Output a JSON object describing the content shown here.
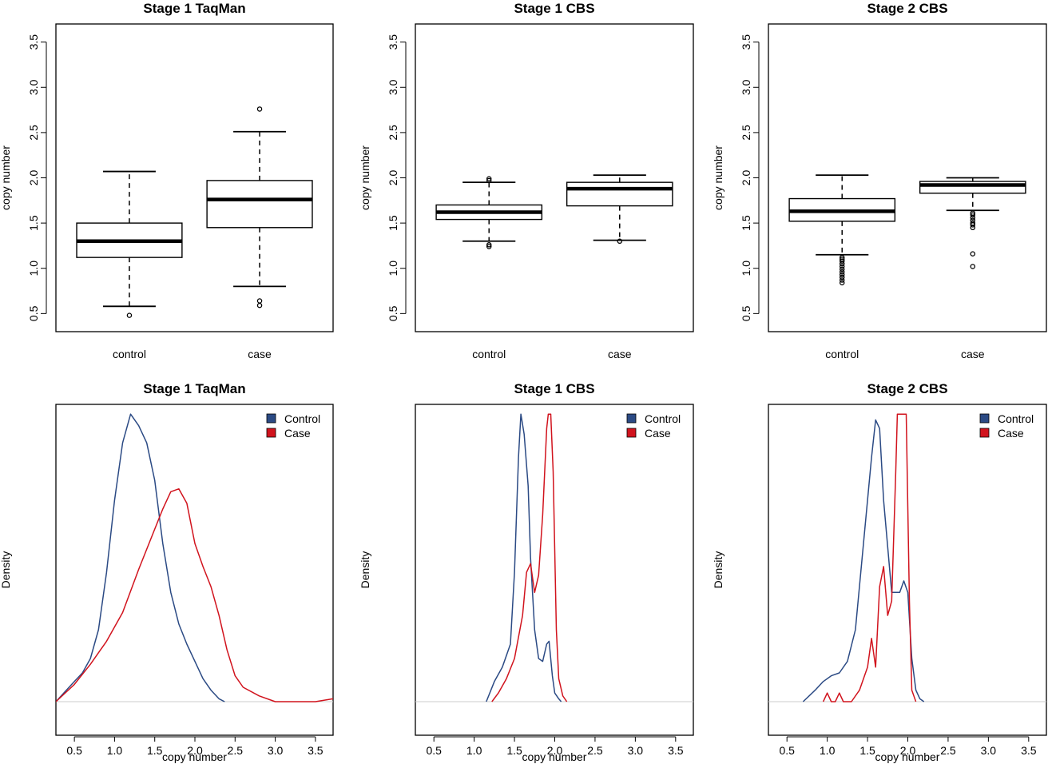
{
  "colors": {
    "control": "#2b4a84",
    "case": "#d1131d",
    "baseline": "#cccccc",
    "frame": "#000000"
  },
  "chart_data": [
    {
      "type": "box",
      "title": "Stage 1 TaqMan",
      "ylabel": "copy number",
      "ylim": [
        0.3,
        3.7
      ],
      "yticks": [
        "0.5",
        "1.0",
        "1.5",
        "2.0",
        "2.5",
        "3.0",
        "3.5"
      ],
      "categories": [
        "control",
        "case"
      ],
      "boxes": [
        {
          "name": "control",
          "whisker_low": 0.58,
          "q1": 1.12,
          "median": 1.3,
          "q3": 1.5,
          "whisker_high": 2.07,
          "outliers": [
            0.48
          ]
        },
        {
          "name": "case",
          "whisker_low": 0.8,
          "q1": 1.45,
          "median": 1.76,
          "q3": 1.97,
          "whisker_high": 2.51,
          "outliers": [
            0.59,
            0.64,
            2.76
          ]
        }
      ]
    },
    {
      "type": "box",
      "title": "Stage 1 CBS",
      "ylabel": "copy number",
      "ylim": [
        0.3,
        3.7
      ],
      "yticks": [
        "0.5",
        "1.0",
        "1.5",
        "2.0",
        "2.5",
        "3.0",
        "3.5"
      ],
      "categories": [
        "control",
        "case"
      ],
      "boxes": [
        {
          "name": "control",
          "whisker_low": 1.3,
          "q1": 1.54,
          "median": 1.62,
          "q3": 1.7,
          "whisker_high": 1.95,
          "outliers": [
            1.24,
            1.26,
            1.97,
            1.99
          ]
        },
        {
          "name": "case",
          "whisker_low": 1.31,
          "q1": 1.69,
          "median": 1.88,
          "q3": 1.95,
          "whisker_high": 2.03,
          "outliers": [
            1.3
          ]
        }
      ]
    },
    {
      "type": "box",
      "title": "Stage 2 CBS",
      "ylabel": "copy number",
      "ylim": [
        0.3,
        3.7
      ],
      "yticks": [
        "0.5",
        "1.0",
        "1.5",
        "2.0",
        "2.5",
        "3.0",
        "3.5"
      ],
      "categories": [
        "control",
        "case"
      ],
      "boxes": [
        {
          "name": "control",
          "whisker_low": 1.15,
          "q1": 1.52,
          "median": 1.63,
          "q3": 1.77,
          "whisker_high": 2.03,
          "outliers": [
            0.84,
            0.87,
            0.9,
            0.93,
            0.96,
            0.99,
            1.02,
            1.05,
            1.08,
            1.1,
            1.12
          ]
        },
        {
          "name": "case",
          "whisker_low": 1.64,
          "q1": 1.83,
          "median": 1.92,
          "q3": 1.96,
          "whisker_high": 2.0,
          "outliers": [
            1.02,
            1.16,
            1.45,
            1.48,
            1.5,
            1.53,
            1.56,
            1.59,
            1.61
          ]
        }
      ]
    },
    {
      "type": "line",
      "title": "Stage 1 TaqMan",
      "xlabel": "copy number",
      "ylabel": "Density",
      "xlim": [
        0.27,
        3.72
      ],
      "xticks": [
        "0.5",
        "1.0",
        "1.5",
        "2.0",
        "2.5",
        "3.0",
        "3.5"
      ],
      "ylim": [
        0,
        1.02
      ],
      "legend": {
        "position": "top-right",
        "labels": [
          "Control",
          "Case"
        ]
      },
      "series": [
        {
          "name": "Control",
          "x": [
            0.27,
            0.4,
            0.5,
            0.6,
            0.7,
            0.8,
            0.9,
            1.0,
            1.1,
            1.2,
            1.3,
            1.4,
            1.5,
            1.6,
            1.7,
            1.8,
            1.9,
            2.0,
            2.1,
            2.2,
            2.3,
            2.37
          ],
          "y": [
            0.0,
            0.04,
            0.07,
            0.1,
            0.15,
            0.25,
            0.45,
            0.7,
            0.9,
            1.0,
            0.96,
            0.9,
            0.77,
            0.55,
            0.38,
            0.27,
            0.2,
            0.14,
            0.08,
            0.04,
            0.01,
            0.0
          ]
        },
        {
          "name": "Case",
          "x": [
            0.27,
            0.5,
            0.7,
            0.9,
            1.1,
            1.3,
            1.5,
            1.6,
            1.7,
            1.8,
            1.9,
            2.0,
            2.1,
            2.2,
            2.3,
            2.4,
            2.5,
            2.6,
            2.8,
            3.0,
            3.2,
            3.5,
            3.72
          ],
          "y": [
            0.0,
            0.06,
            0.13,
            0.21,
            0.31,
            0.46,
            0.6,
            0.67,
            0.73,
            0.74,
            0.69,
            0.55,
            0.47,
            0.4,
            0.3,
            0.18,
            0.09,
            0.05,
            0.02,
            0.0,
            0.0,
            0.0,
            0.01
          ]
        }
      ]
    },
    {
      "type": "line",
      "title": "Stage 1 CBS",
      "xlabel": "copy number",
      "ylabel": "Density",
      "xlim": [
        0.27,
        3.72
      ],
      "xticks": [
        "0.5",
        "1.0",
        "1.5",
        "2.0",
        "2.5",
        "3.0",
        "3.5"
      ],
      "ylim": [
        0,
        1.02
      ],
      "legend": {
        "position": "top-right",
        "labels": [
          "Control",
          "Case"
        ]
      },
      "series": [
        {
          "name": "Control",
          "x": [
            1.15,
            1.25,
            1.35,
            1.45,
            1.5,
            1.55,
            1.58,
            1.62,
            1.67,
            1.7,
            1.75,
            1.8,
            1.85,
            1.9,
            1.93,
            1.97,
            2.0,
            2.05,
            2.08
          ],
          "y": [
            0.0,
            0.07,
            0.12,
            0.2,
            0.45,
            0.85,
            1.0,
            0.93,
            0.75,
            0.5,
            0.25,
            0.15,
            0.14,
            0.2,
            0.21,
            0.09,
            0.03,
            0.01,
            0.0
          ]
        },
        {
          "name": "Case",
          "x": [
            1.22,
            1.3,
            1.4,
            1.5,
            1.6,
            1.65,
            1.7,
            1.75,
            1.8,
            1.85,
            1.9,
            1.92,
            1.95,
            1.98,
            2.02,
            2.05,
            2.1,
            2.15
          ],
          "y": [
            0.0,
            0.03,
            0.08,
            0.15,
            0.3,
            0.45,
            0.48,
            0.38,
            0.44,
            0.65,
            0.95,
            1.0,
            1.0,
            0.8,
            0.25,
            0.08,
            0.02,
            0.0
          ]
        }
      ]
    },
    {
      "type": "line",
      "title": "Stage 2 CBS",
      "xlabel": "copy number",
      "ylabel": "Density",
      "xlim": [
        0.27,
        3.72
      ],
      "xticks": [
        "0.5",
        "1.0",
        "1.5",
        "2.0",
        "2.5",
        "3.0",
        "3.5"
      ],
      "ylim": [
        0,
        1.02
      ],
      "legend": {
        "position": "top-right",
        "labels": [
          "Control",
          "Case"
        ]
      },
      "series": [
        {
          "name": "Control",
          "x": [
            0.7,
            0.85,
            0.95,
            1.05,
            1.15,
            1.25,
            1.35,
            1.45,
            1.55,
            1.6,
            1.65,
            1.7,
            1.8,
            1.9,
            1.95,
            2.0,
            2.05,
            2.1,
            2.15,
            2.2
          ],
          "y": [
            0.0,
            0.04,
            0.07,
            0.09,
            0.1,
            0.14,
            0.25,
            0.55,
            0.85,
            0.98,
            0.95,
            0.7,
            0.38,
            0.38,
            0.42,
            0.38,
            0.15,
            0.04,
            0.01,
            0.0
          ]
        },
        {
          "name": "Case",
          "x": [
            0.95,
            1.0,
            1.05,
            1.1,
            1.15,
            1.2,
            1.3,
            1.4,
            1.5,
            1.55,
            1.6,
            1.65,
            1.7,
            1.75,
            1.8,
            1.85,
            1.87,
            1.9,
            1.95,
            1.98,
            2.02,
            2.05,
            2.1
          ],
          "y": [
            0.0,
            0.03,
            0.0,
            0.0,
            0.03,
            0.0,
            0.0,
            0.04,
            0.12,
            0.22,
            0.12,
            0.4,
            0.47,
            0.3,
            0.35,
            0.8,
            1.0,
            1.0,
            1.0,
            1.0,
            0.35,
            0.04,
            0.0
          ]
        }
      ]
    }
  ]
}
